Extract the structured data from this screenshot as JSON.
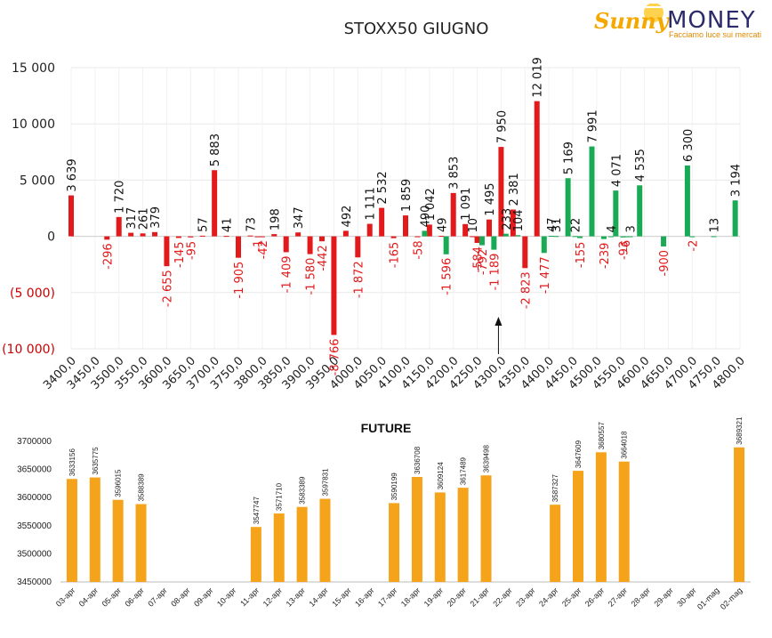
{
  "logo": {
    "brand_sunny": "Sunny",
    "brand_money": "MONEY",
    "tagline": "Facciamo luce sui mercati",
    "colors": {
      "sunny": "#f5a800",
      "money": "#2b2b6b",
      "tagline": "#e08a00"
    }
  },
  "chart_data": [
    {
      "type": "bar",
      "title": "STOXX50 GIUGNO",
      "xlabel": "",
      "ylabel": "",
      "ylim": [
        -10000,
        15000
      ],
      "yticks": [
        15000,
        10000,
        5000,
        0,
        -5000,
        -10000
      ],
      "ytick_labels": [
        "15 000",
        "10 000",
        "5 000",
        "0",
        "(5 000)",
        "(10 000)"
      ],
      "xtick_labels": [
        "3400,0",
        "3450,0",
        "3500,0",
        "3550,0",
        "3600,0",
        "3650,0",
        "3700,0",
        "3750,0",
        "3800,0",
        "3850,0",
        "3900,0",
        "3950,0",
        "4000,0",
        "4050,0",
        "4100,0",
        "4150,0",
        "4200,0",
        "4250,0",
        "4300,0",
        "4350,0",
        "4400,0",
        "4450,0",
        "4500,0",
        "4550,0",
        "4600,0",
        "4650,0",
        "4700,0",
        "4750,0",
        "4800,0"
      ],
      "x_range": [
        3400,
        4800
      ],
      "grid": true,
      "colors": {
        "calls": "#e31a1c",
        "puts": "#1aaa55",
        "negative_tick": "#cc0000"
      },
      "annotation": "arrow at 4300,0",
      "arrow_x": 4300,
      "series": [
        {
          "color_key": "calls",
          "points": [
            {
              "x": 3400,
              "v": 3639,
              "label": "3 639"
            },
            {
              "x": 3450,
              "v": 0,
              "label": ""
            },
            {
              "x": 3475,
              "v": -296,
              "label": "-296"
            },
            {
              "x": 3500,
              "v": 1720,
              "label": "1 720"
            },
            {
              "x": 3525,
              "v": 317,
              "label": "317"
            },
            {
              "x": 3550,
              "v": 261,
              "label": "261"
            },
            {
              "x": 3575,
              "v": 379,
              "label": "379"
            },
            {
              "x": 3600,
              "v": -2655,
              "label": "-2 655"
            },
            {
              "x": 3625,
              "v": -145,
              "label": "-145"
            },
            {
              "x": 3650,
              "v": -95,
              "label": "-95"
            },
            {
              "x": 3675,
              "v": 57,
              "label": "57"
            },
            {
              "x": 3700,
              "v": 5883,
              "label": "5 883"
            },
            {
              "x": 3725,
              "v": 41,
              "label": "41"
            },
            {
              "x": 3750,
              "v": -1905,
              "label": "-1 905"
            },
            {
              "x": 3775,
              "v": 73,
              "label": "73"
            },
            {
              "x": 3790,
              "v": -1,
              "label": "-1"
            },
            {
              "x": 3800,
              "v": -42,
              "label": "-42"
            },
            {
              "x": 3825,
              "v": 198,
              "label": "198"
            },
            {
              "x": 3850,
              "v": -1409,
              "label": "-1 409"
            },
            {
              "x": 3875,
              "v": 347,
              "label": "347"
            },
            {
              "x": 3900,
              "v": -1580,
              "label": "-1 580"
            },
            {
              "x": 3925,
              "v": -442,
              "label": "-442"
            },
            {
              "x": 3950,
              "v": -8766,
              "label": "-8 766"
            },
            {
              "x": 3975,
              "v": 492,
              "label": "492"
            },
            {
              "x": 4000,
              "v": -1872,
              "label": "-1 872"
            },
            {
              "x": 4025,
              "v": 1111,
              "label": "1 111"
            },
            {
              "x": 4050,
              "v": 2532,
              "label": "2 532"
            },
            {
              "x": 4075,
              "v": -165,
              "label": "-165"
            },
            {
              "x": 4100,
              "v": 1859,
              "label": "1 859"
            },
            {
              "x": 4125,
              "v": -58,
              "label": "-58"
            },
            {
              "x": 4150,
              "v": 1042,
              "label": "1 042"
            },
            {
              "x": 4175,
              "v": 49,
              "label": "49"
            },
            {
              "x": 4200,
              "v": 3853,
              "label": "3 853"
            },
            {
              "x": 4225,
              "v": 1091,
              "label": "1 091"
            },
            {
              "x": 4240,
              "v": 10,
              "label": "10"
            },
            {
              "x": 4250,
              "v": -584,
              "label": "-584"
            },
            {
              "x": 4275,
              "v": 1495,
              "label": "1 495"
            },
            {
              "x": 4300,
              "v": 7950,
              "label": "7 950"
            },
            {
              "x": 4325,
              "v": 2381,
              "label": "2 381"
            },
            {
              "x": 4350,
              "v": -2823,
              "label": "-2 823"
            },
            {
              "x": 4375,
              "v": 12019,
              "label": "12 019"
            }
          ]
        },
        {
          "color_key": "puts",
          "points": [
            {
              "x": 4140,
              "v": 490,
              "label": "490"
            },
            {
              "x": 4185,
              "v": -1596,
              "label": "-1 596"
            },
            {
              "x": 4260,
              "v": -792,
              "label": "-792"
            },
            {
              "x": 4285,
              "v": -1189,
              "label": "-1 189"
            },
            {
              "x": 4310,
              "v": 233,
              "label": "233"
            },
            {
              "x": 4335,
              "v": 104,
              "label": "104"
            },
            {
              "x": 4390,
              "v": -1477,
              "label": "-1 477"
            },
            {
              "x": 4405,
              "v": 47,
              "label": "47"
            },
            {
              "x": 4415,
              "v": 31,
              "label": "31"
            },
            {
              "x": 4440,
              "v": 5169,
              "label": "5 169"
            },
            {
              "x": 4455,
              "v": 22,
              "label": "22"
            },
            {
              "x": 4465,
              "v": -155,
              "label": "-155"
            },
            {
              "x": 4490,
              "v": 7991,
              "label": "7 991"
            },
            {
              "x": 4515,
              "v": -239,
              "label": "-239"
            },
            {
              "x": 4530,
              "v": 4,
              "label": "4"
            },
            {
              "x": 4540,
              "v": 4071,
              "label": "4 071"
            },
            {
              "x": 4555,
              "v": -93,
              "label": "-93"
            },
            {
              "x": 4560,
              "v": -6,
              "label": "-6"
            },
            {
              "x": 4570,
              "v": 3,
              "label": "3"
            },
            {
              "x": 4590,
              "v": 4535,
              "label": "4 535"
            },
            {
              "x": 4640,
              "v": -900,
              "label": "-900"
            },
            {
              "x": 4690,
              "v": 6300,
              "label": "6 300"
            },
            {
              "x": 4700,
              "v": -2,
              "label": "-2"
            },
            {
              "x": 4745,
              "v": 13,
              "label": "13"
            },
            {
              "x": 4790,
              "v": 3194,
              "label": "3 194"
            }
          ]
        }
      ]
    },
    {
      "type": "bar",
      "title": "FUTURE",
      "xlabel": "",
      "ylabel": "",
      "ylim": [
        3450000,
        3700000
      ],
      "yticks": [
        3700000,
        3650000,
        3600000,
        3550000,
        3500000,
        3450000
      ],
      "grid": false,
      "bar_color": "#f5a31a",
      "categories": [
        "03-apr",
        "04-apr",
        "05-apr",
        "06-apr",
        "07-apr",
        "08-apr",
        "09-apr",
        "10-apr",
        "11-apr",
        "12-apr",
        "13-apr",
        "14-apr",
        "15-apr",
        "16-apr",
        "17-apr",
        "18-apr",
        "19-apr",
        "20-apr",
        "21-apr",
        "22-apr",
        "23-apr",
        "24-apr",
        "25-apr",
        "26-apr",
        "27-apr",
        "28-apr",
        "29-apr",
        "30-apr",
        "01-mag",
        "02-mag"
      ],
      "values": [
        3633156,
        3635775,
        3596015,
        3588389,
        null,
        null,
        null,
        null,
        3547747,
        3571710,
        3583389,
        3597831,
        null,
        null,
        3590199,
        3636708,
        3609124,
        3617489,
        3639498,
        null,
        null,
        3587327,
        3647609,
        3680557,
        3664018,
        null,
        null,
        null,
        null,
        3689321
      ]
    }
  ]
}
